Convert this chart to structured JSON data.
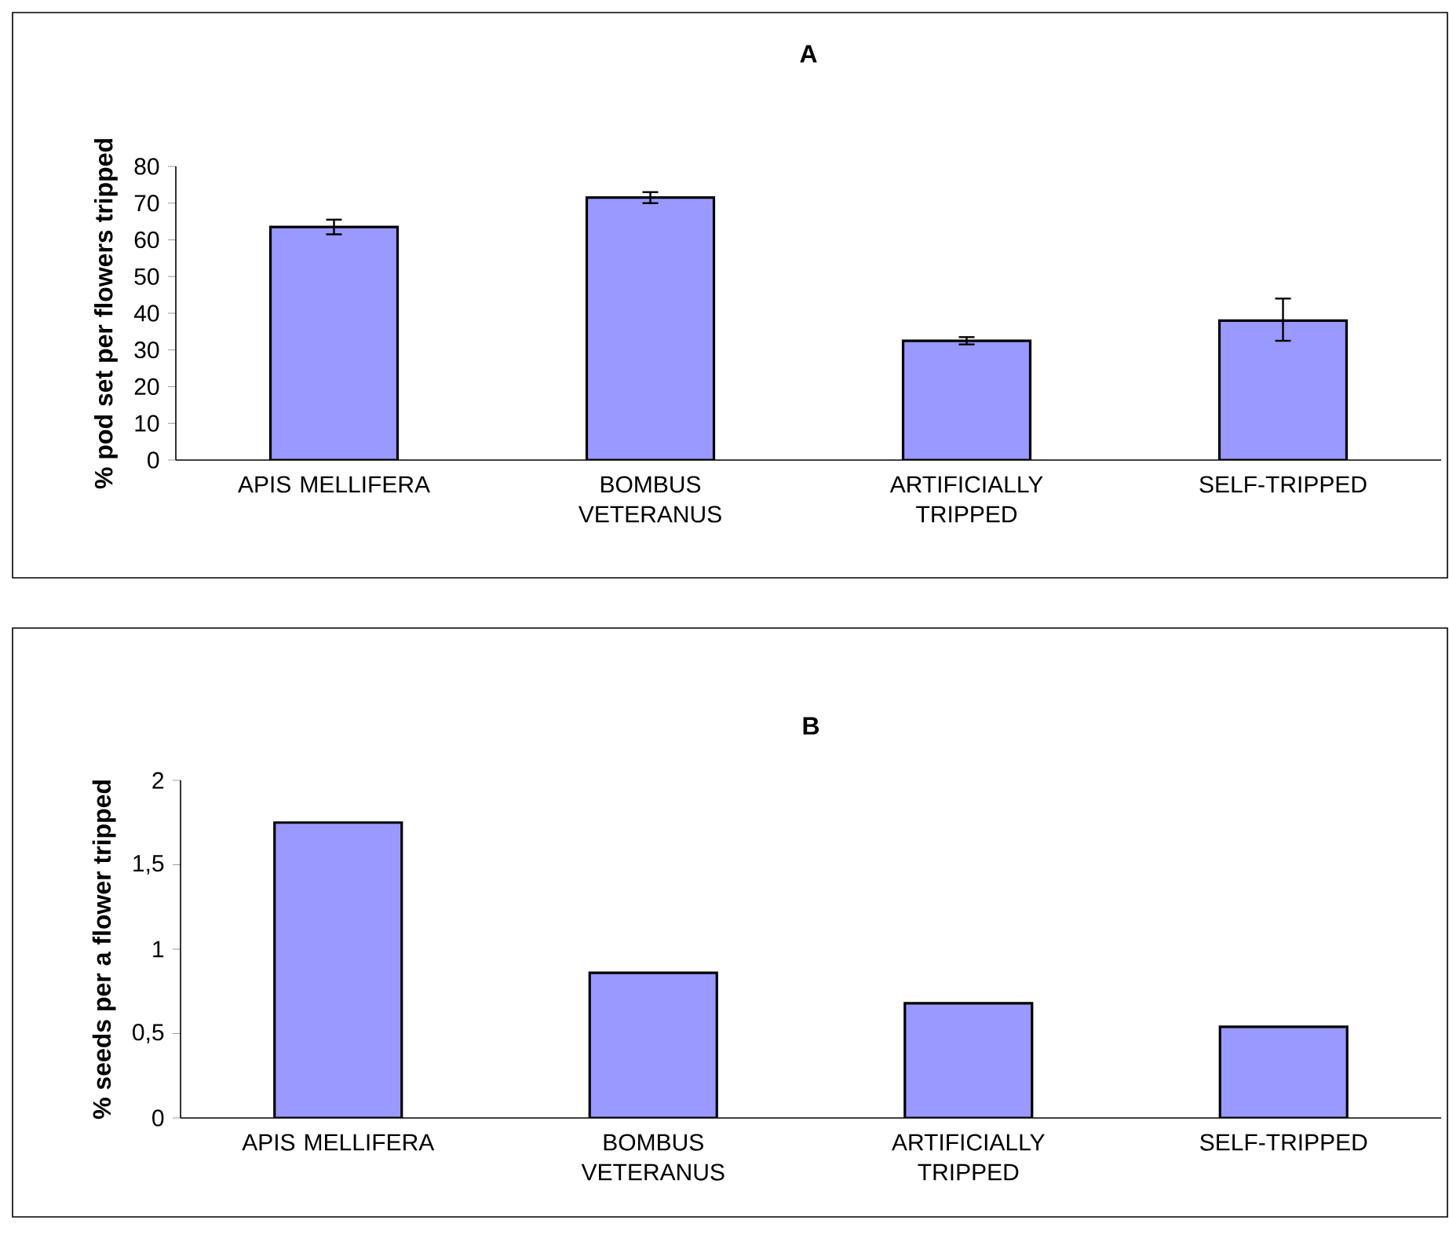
{
  "chart_data": [
    {
      "type": "bar",
      "title": "A",
      "ylabel": "% pod set per flowers tripped",
      "categories": [
        "APIS MELLIFERA",
        "BOMBUS VETERANUS",
        "ARTIFICIALLY TRIPPED",
        "SELF-TRIPPED"
      ],
      "values": [
        63.5,
        71.5,
        32.5,
        38
      ],
      "errors": [
        2,
        1.5,
        1,
        [
          32.5,
          44
        ]
      ],
      "color": "#9999ff",
      "ylim": [
        0,
        80
      ],
      "yticks": [
        0,
        10,
        20,
        30,
        40,
        50,
        60,
        70,
        80
      ]
    },
    {
      "type": "bar",
      "title": "B",
      "ylabel": "% seeds per a flower tripped",
      "categories": [
        "APIS MELLIFERA",
        "BOMBUS VETERANUS",
        "ARTIFICIALLY TRIPPED",
        "SELF-TRIPPED"
      ],
      "values": [
        1.75,
        0.86,
        0.68,
        0.54
      ],
      "color": "#9999ff",
      "ylim": [
        0,
        2
      ],
      "yticks": [
        0,
        {
          "value": 0.5,
          "label": "0,5"
        },
        1,
        {
          "value": 1.5,
          "label": "1,5"
        },
        2
      ]
    }
  ]
}
